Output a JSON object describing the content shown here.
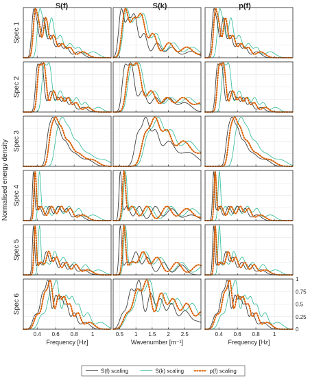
{
  "chart_data": {
    "type": "line",
    "columns": [
      "S(f)",
      "S(k)",
      "p(f)"
    ],
    "rows": [
      "Spec 1",
      "Spec 2",
      "Spec 3",
      "Spec 4",
      "Spec 5",
      "Spec 6"
    ],
    "ylabel": "Normalised energy density",
    "xlabels": [
      "Frequency [Hz]",
      "Wavenumber [m⁻¹]",
      "Frequency [Hz]"
    ],
    "xticks": [
      [
        "0.4",
        "0.6",
        "0.8",
        "1"
      ],
      [
        "0.5",
        "1",
        "1.5",
        "2",
        "2.5"
      ],
      [
        "0.4",
        "0.6",
        "0.8",
        "1"
      ]
    ],
    "xlim": [
      [
        0.25,
        1.2
      ],
      [
        0.3,
        3.0
      ],
      [
        0.25,
        1.2
      ]
    ],
    "yticks": [
      "0",
      "0.25",
      "0.5",
      "0.75",
      "1"
    ],
    "ylim": [
      0,
      1
    ],
    "grid": true,
    "legend_position": "bottom",
    "series": [
      {
        "name": "S(f) scaling",
        "color": "#3d3d3d",
        "style": "solid"
      },
      {
        "name": "S(k) scaling",
        "color": "#3fbf9f",
        "style": "solid"
      },
      {
        "name": "p(f) scaling",
        "color": "#d95f02",
        "style": "dotted"
      }
    ],
    "freq_peaks": [
      [
        [
          0.36,
          0.9,
          0.02
        ],
        [
          0.4,
          0.6,
          0.02
        ],
        [
          0.47,
          0.8,
          0.025
        ],
        [
          0.55,
          0.45,
          0.03
        ],
        [
          0.64,
          0.28,
          0.03
        ],
        [
          0.72,
          0.2,
          0.03
        ],
        [
          0.85,
          0.12,
          0.05
        ]
      ],
      [
        [
          0.4,
          0.85,
          0.02
        ],
        [
          0.45,
          1.0,
          0.025
        ],
        [
          0.55,
          0.45,
          0.03
        ],
        [
          0.63,
          0.3,
          0.025
        ],
        [
          0.7,
          0.3,
          0.025
        ],
        [
          0.78,
          0.2,
          0.03
        ],
        [
          0.9,
          0.1,
          0.04
        ]
      ],
      [
        [
          0.52,
          0.6,
          0.025
        ],
        [
          0.57,
          1.0,
          0.03
        ],
        [
          0.63,
          0.7,
          0.03
        ],
        [
          0.7,
          0.5,
          0.04
        ],
        [
          0.8,
          0.3,
          0.06
        ],
        [
          0.95,
          0.15,
          0.06
        ]
      ],
      [
        [
          0.36,
          1.0,
          0.012
        ],
        [
          0.42,
          0.3,
          0.03
        ],
        [
          0.53,
          0.3,
          0.03
        ],
        [
          0.63,
          0.3,
          0.03
        ],
        [
          0.72,
          0.25,
          0.03
        ],
        [
          0.85,
          0.12,
          0.05
        ]
      ],
      [
        [
          0.36,
          0.95,
          0.012
        ],
        [
          0.42,
          0.25,
          0.03
        ],
        [
          0.5,
          0.45,
          0.025
        ],
        [
          0.58,
          0.35,
          0.03
        ],
        [
          0.68,
          0.25,
          0.03
        ],
        [
          0.78,
          0.2,
          0.03
        ],
        [
          0.9,
          0.1,
          0.05
        ]
      ],
      [
        [
          0.38,
          0.3,
          0.03
        ],
        [
          0.46,
          0.75,
          0.03
        ],
        [
          0.52,
          0.95,
          0.025
        ],
        [
          0.6,
          0.7,
          0.025
        ],
        [
          0.66,
          0.65,
          0.025
        ],
        [
          0.72,
          0.5,
          0.025
        ],
        [
          0.8,
          0.35,
          0.03
        ],
        [
          0.92,
          0.15,
          0.05
        ]
      ]
    ],
    "wave_peaks": [
      [
        [
          0.55,
          0.9,
          0.08
        ],
        [
          0.75,
          0.6,
          0.08
        ],
        [
          0.95,
          0.8,
          0.1
        ],
        [
          1.25,
          0.45,
          0.1
        ],
        [
          1.65,
          0.28,
          0.12
        ],
        [
          2.1,
          0.2,
          0.15
        ],
        [
          2.7,
          0.12,
          0.2
        ]
      ],
      [
        [
          0.65,
          0.85,
          0.08
        ],
        [
          0.85,
          1.0,
          0.1
        ],
        [
          1.2,
          0.45,
          0.12
        ],
        [
          1.6,
          0.3,
          0.12
        ],
        [
          2.0,
          0.3,
          0.15
        ],
        [
          2.5,
          0.2,
          0.2
        ]
      ],
      [
        [
          1.05,
          0.6,
          0.1
        ],
        [
          1.3,
          1.0,
          0.12
        ],
        [
          1.6,
          0.7,
          0.12
        ],
        [
          2.0,
          0.5,
          0.18
        ],
        [
          2.6,
          0.3,
          0.3
        ]
      ],
      [
        [
          0.52,
          1.0,
          0.04
        ],
        [
          0.72,
          0.3,
          0.1
        ],
        [
          1.1,
          0.3,
          0.1
        ],
        [
          1.6,
          0.3,
          0.12
        ],
        [
          2.1,
          0.25,
          0.15
        ],
        [
          2.7,
          0.12,
          0.2
        ]
      ],
      [
        [
          0.52,
          0.95,
          0.04
        ],
        [
          0.72,
          0.25,
          0.1
        ],
        [
          1.0,
          0.45,
          0.1
        ],
        [
          1.35,
          0.35,
          0.12
        ],
        [
          1.85,
          0.25,
          0.12
        ],
        [
          2.4,
          0.2,
          0.15
        ]
      ],
      [
        [
          0.6,
          0.3,
          0.1
        ],
        [
          0.85,
          0.75,
          0.1
        ],
        [
          1.1,
          0.95,
          0.1
        ],
        [
          1.45,
          0.7,
          0.1
        ],
        [
          1.75,
          0.6,
          0.12
        ],
        [
          2.1,
          0.5,
          0.12
        ],
        [
          2.5,
          0.35,
          0.15
        ],
        [
          2.9,
          0.15,
          0.2
        ]
      ]
    ],
    "series_shift": {
      "freq": [
        1.0,
        1.18,
        1.05
      ],
      "wave": [
        1.0,
        1.3,
        1.22
      ]
    }
  }
}
